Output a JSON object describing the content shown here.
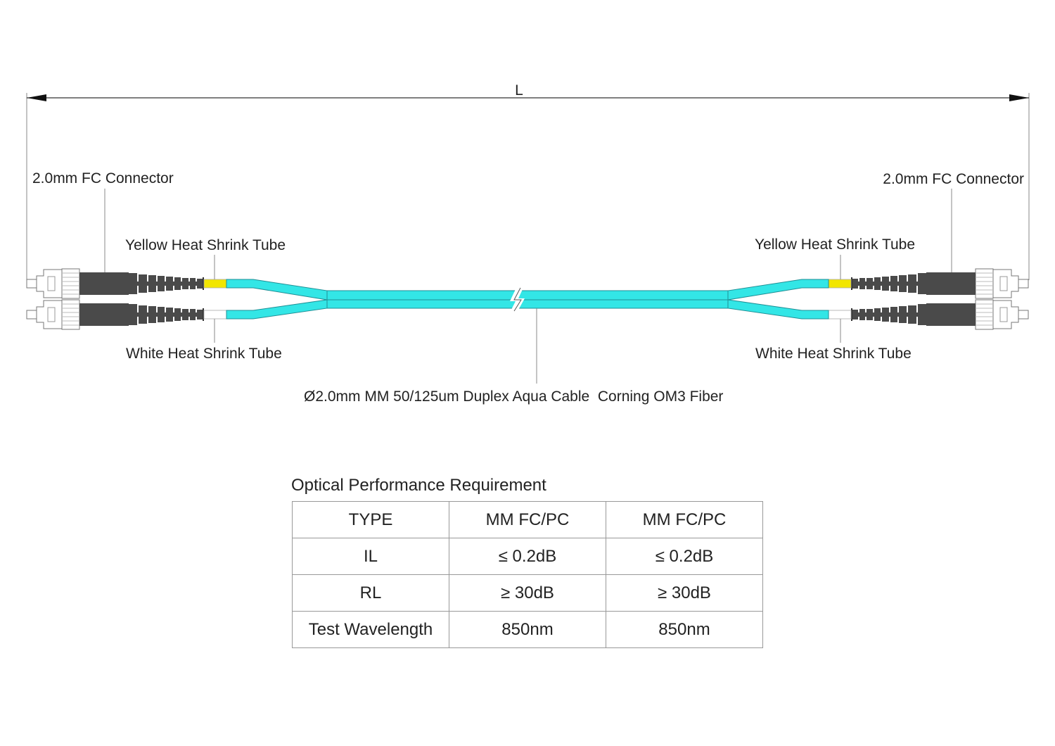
{
  "dimension": {
    "label": "L"
  },
  "labels": {
    "left_connector": "2.0mm FC Connector",
    "right_connector": "2.0mm FC Connector",
    "left_yellow_tube": "Yellow Heat Shrink Tube",
    "right_yellow_tube": "Yellow Heat Shrink Tube",
    "left_white_tube": "White Heat Shrink Tube",
    "right_white_tube": "White Heat Shrink Tube",
    "cable": "Ø2.0mm MM 50/125um Duplex Aqua Cable  Corning OM3 Fiber"
  },
  "colors": {
    "cable": "#33e6e6",
    "cable_outline": "#1f8f95",
    "connector_body": "#4a4a4a",
    "yellow_tube": "#f2e600",
    "white_tube": "#ffffff"
  },
  "table": {
    "caption": "Optical Performance Requirement",
    "rows": [
      [
        "TYPE",
        "MM FC/PC",
        "MM FC/PC"
      ],
      [
        "IL",
        "≤ 0.2dB",
        "≤ 0.2dB"
      ],
      [
        "RL",
        "≥ 30dB",
        "≥ 30dB"
      ],
      [
        "Test Wavelength",
        "850nm",
        "850nm"
      ]
    ]
  }
}
